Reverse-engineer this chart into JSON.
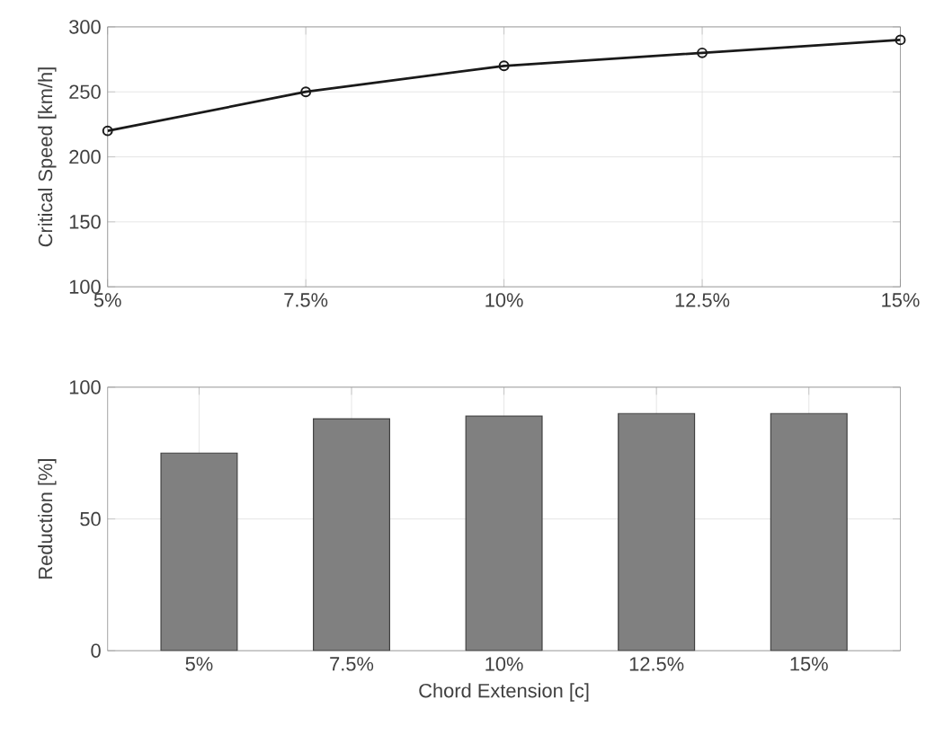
{
  "chart_data": [
    {
      "type": "line",
      "ylabel": "Critical Speed [km/h]",
      "x": [
        5,
        7.5,
        10,
        12.5,
        15
      ],
      "values": [
        220,
        250,
        270,
        280,
        290
      ],
      "color": "#1a1a1a",
      "marker": "circle",
      "line_style": "solid",
      "xlim": [
        5,
        15
      ],
      "xticks": [
        {
          "value": 5,
          "label": "5%"
        },
        {
          "value": 7.5,
          "label": "7.5%"
        },
        {
          "value": 10,
          "label": "10%"
        },
        {
          "value": 12.5,
          "label": "12.5%"
        },
        {
          "value": 15,
          "label": "15%"
        }
      ],
      "ylim": [
        100,
        300
      ],
      "yticks": [
        100,
        150,
        200,
        250,
        300
      ],
      "grid": true
    },
    {
      "type": "bar",
      "xlabel": "Chord Extension [c]",
      "ylabel": "Reduction [%]",
      "categories": [
        "5%",
        "7.5%",
        "10%",
        "12.5%",
        "15%"
      ],
      "values": [
        75,
        88,
        89,
        90,
        90
      ],
      "color": "#808080",
      "ylim": [
        0,
        100
      ],
      "yticks": [
        0,
        50,
        100
      ],
      "grid": true
    }
  ]
}
